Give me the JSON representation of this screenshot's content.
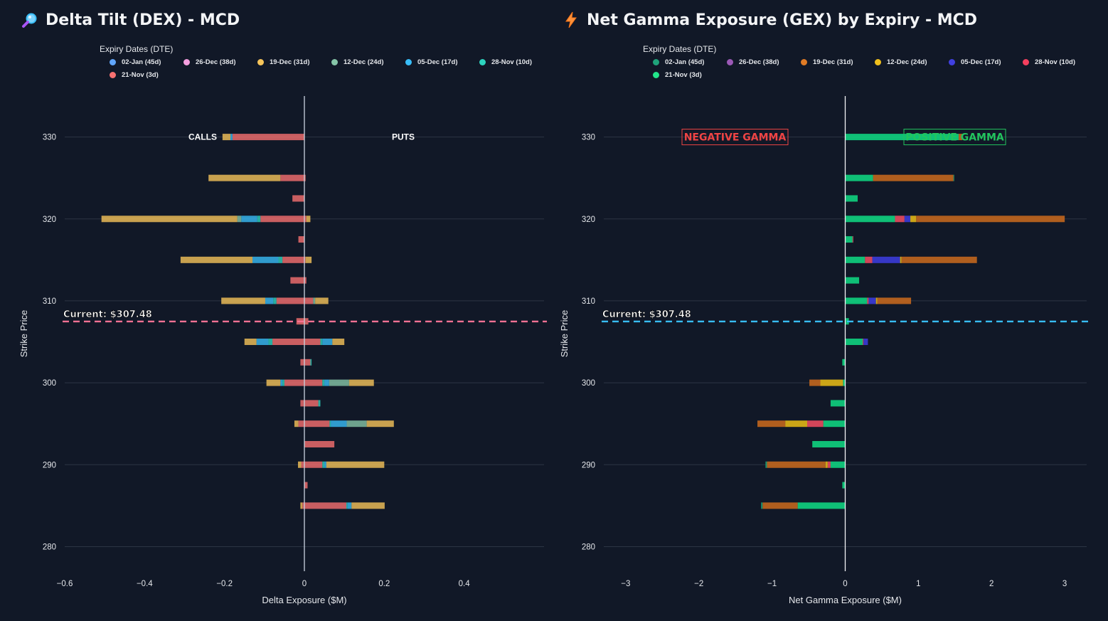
{
  "left_panel": {
    "title": "Delta Tilt (DEX) - MCD",
    "icon": "magnifier-icon",
    "legend_title": "Expiry Dates (DTE)",
    "annotations": {
      "calls": "CALLS",
      "puts": "PUTS",
      "current": "Current: $307.48"
    },
    "current_color": "#f87193"
  },
  "right_panel": {
    "title": "Net Gamma Exposure (GEX) by Expiry - MCD",
    "icon": "lightning-icon",
    "legend_title": "Expiry Dates (DTE)",
    "annotations": {
      "negative": "NEGATIVE GAMMA",
      "positive": "POSITIVE GAMMA",
      "current": "Current: $307.48"
    },
    "current_color": "#38bdf8"
  },
  "chart_data": [
    {
      "type": "bar",
      "orientation": "horizontal",
      "barmode": "stacked",
      "title": "Delta Tilt (DEX) - MCD",
      "xlabel": "Delta Exposure ($M)",
      "ylabel": "Strike Price",
      "xlim": [
        -0.6,
        0.6
      ],
      "ylim": [
        277,
        335
      ],
      "xticks": [
        -0.6,
        -0.4,
        -0.2,
        0,
        0.2,
        0.4
      ],
      "xtick_labels": [
        "−0.6",
        "−0.4",
        "−0.2",
        "0",
        "0.2",
        "0.4"
      ],
      "yticks": [
        280,
        290,
        300,
        310,
        320,
        330
      ],
      "current_price": 307.48,
      "legend_title": "Expiry Dates (DTE)",
      "legend_position": "top",
      "strikes": [
        330,
        325,
        322.5,
        320,
        317.5,
        315,
        312.5,
        310,
        307.5,
        305,
        302.5,
        300,
        297.5,
        295,
        292.5,
        290,
        287.5,
        285
      ],
      "series": [
        {
          "name": "21-Nov (3d)",
          "color": "#f87171",
          "legend_color": "#f87171",
          "neg": [
            -0.18,
            -0.06,
            -0.03,
            -0.11,
            -0.015,
            -0.055,
            -0.035,
            -0.07,
            -0.02,
            -0.08,
            -0.01,
            -0.05,
            -0.01,
            -0.015,
            0,
            -0.008,
            0,
            -0.005
          ],
          "pos": [
            0,
            0.003,
            0,
            0.005,
            0,
            0.003,
            0.005,
            0.022,
            0.01,
            0.04,
            0.015,
            0.045,
            0.035,
            0.063,
            0.075,
            0.045,
            0.008,
            0.105
          ]
        },
        {
          "name": "28-Nov (10d)",
          "color": "#2dd4bf",
          "legend_color": "#2dd4bf",
          "neg": [
            0,
            0,
            0,
            -0.008,
            0,
            -0.01,
            0,
            -0.008,
            0,
            -0.01,
            0,
            -0.005,
            0,
            0,
            0,
            0,
            0,
            0
          ],
          "pos": [
            0,
            0,
            0,
            0,
            0,
            0,
            0,
            0,
            0,
            0.005,
            0.003,
            0.005,
            0.005,
            0.003,
            0,
            0.005,
            0,
            0.003
          ]
        },
        {
          "name": "05-Dec (17d)",
          "color": "#38bdf8",
          "legend_color": "#38bdf8",
          "neg": [
            -0.005,
            0,
            0,
            -0.04,
            0,
            -0.065,
            0,
            -0.02,
            0,
            -0.03,
            0,
            -0.005,
            0,
            0,
            0,
            0,
            0,
            0
          ],
          "pos": [
            0,
            0,
            0,
            0,
            0,
            0,
            0,
            0,
            0,
            0.025,
            0,
            0.012,
            0,
            0.04,
            0,
            0.005,
            0,
            0.01
          ]
        },
        {
          "name": "12-Dec (24d)",
          "color": "#86c5a8",
          "legend_color": "#86c5a8",
          "neg": [
            0,
            0,
            0,
            -0.01,
            0,
            0,
            0,
            0,
            0,
            0,
            0,
            0,
            0,
            0,
            0,
            0,
            0,
            0
          ],
          "pos": [
            0,
            0,
            0,
            0,
            0,
            0,
            0,
            0.005,
            0,
            0,
            0,
            0.05,
            0,
            0.05,
            0,
            0,
            0,
            0
          ]
        },
        {
          "name": "19-Dec (31d)",
          "color": "#f6c45a",
          "legend_color": "#f6c45a",
          "neg": [
            -0.02,
            -0.18,
            0,
            -0.34,
            0,
            -0.18,
            0,
            -0.11,
            0,
            -0.03,
            0,
            -0.035,
            0,
            -0.01,
            0,
            -0.008,
            0,
            -0.005
          ],
          "pos": [
            0,
            0,
            0,
            0.01,
            0,
            0.015,
            0,
            0.033,
            0,
            0.03,
            0,
            0.062,
            0,
            0.068,
            0,
            0.145,
            0,
            0.083
          ]
        },
        {
          "name": "26-Dec (38d)",
          "color": "#f59ede",
          "legend_color": "#f59ede",
          "neg": [
            0,
            0,
            0,
            0,
            0,
            0,
            0,
            0,
            0,
            0,
            0,
            0,
            0,
            0,
            0,
            0,
            0,
            0
          ],
          "pos": [
            0,
            0,
            0,
            0,
            0,
            0,
            0,
            0,
            0,
            0,
            0,
            0,
            0,
            0,
            0,
            0,
            0,
            0
          ]
        },
        {
          "name": "02-Jan (45d)",
          "color": "#60a5fa",
          "legend_color": "#60a5fa",
          "neg": [
            0,
            0,
            0,
            0,
            0,
            0,
            0,
            0,
            0,
            0,
            0,
            0,
            0,
            0,
            0,
            0,
            0,
            0
          ],
          "pos": [
            0,
            0,
            0,
            0,
            0,
            0,
            0,
            0,
            0,
            0,
            0,
            0,
            0,
            0,
            0,
            0,
            0,
            0
          ]
        }
      ],
      "legend_order": [
        "02-Jan (45d)",
        "26-Dec (38d)",
        "19-Dec (31d)",
        "12-Dec (24d)",
        "05-Dec (17d)",
        "28-Nov (10d)",
        "21-Nov (3d)"
      ]
    },
    {
      "type": "bar",
      "orientation": "horizontal",
      "barmode": "stacked",
      "title": "Net Gamma Exposure (GEX) by Expiry - MCD",
      "xlabel": "Net Gamma Exposure ($M)",
      "ylabel": "Strike Price",
      "xlim": [
        -3.3,
        3.3
      ],
      "ylim": [
        277,
        335
      ],
      "xticks": [
        -3,
        -2,
        -1,
        0,
        1,
        2,
        3
      ],
      "xtick_labels": [
        "−3",
        "−2",
        "−1",
        "0",
        "1",
        "2",
        "3"
      ],
      "yticks": [
        280,
        290,
        300,
        310,
        320,
        330
      ],
      "current_price": 307.48,
      "legend_title": "Expiry Dates (DTE)",
      "legend_position": "top",
      "strikes": [
        330,
        325,
        322.5,
        320,
        317.5,
        315,
        312.5,
        310,
        307.5,
        305,
        302.5,
        300,
        297.5,
        295,
        292.5,
        290,
        287.5,
        285
      ],
      "series": [
        {
          "name": "21-Nov (3d)",
          "color": "#10d180",
          "legend_color": "#22e58a",
          "values": [
            1.55,
            0.38,
            0.17,
            0.68,
            0.1,
            0.27,
            0.19,
            0.3,
            0.05,
            0.24,
            -0.04,
            -0.03,
            -0.2,
            -0.3,
            -0.45,
            -0.2,
            -0.04,
            -0.65
          ]
        },
        {
          "name": "28-Nov (10d)",
          "color": "#e84a5f",
          "legend_color": "#f43f5e",
          "values": [
            0,
            0,
            0,
            0.13,
            0.01,
            0.1,
            0,
            0.02,
            0,
            0.01,
            0,
            0,
            0,
            -0.22,
            0,
            -0.04,
            0,
            0
          ]
        },
        {
          "name": "05-Dec (17d)",
          "color": "#3b3bd8",
          "legend_color": "#4040e0",
          "values": [
            0,
            0,
            0,
            0.08,
            0,
            0.38,
            0,
            0.1,
            0,
            0.06,
            0,
            0,
            0,
            0,
            0,
            0,
            0,
            0
          ]
        },
        {
          "name": "12-Dec (24d)",
          "color": "#e0b516",
          "legend_color": "#f0c01c",
          "values": [
            0,
            0,
            0,
            0.08,
            0,
            0.02,
            0,
            0.02,
            0,
            0,
            0,
            -0.31,
            0,
            -0.3,
            0,
            -0.03,
            0,
            0
          ]
        },
        {
          "name": "19-Dec (31d)",
          "color": "#c2661e",
          "legend_color": "#e07b25",
          "values": [
            0.05,
            1.1,
            0,
            2.03,
            0,
            1.03,
            0,
            0.46,
            0,
            0,
            0,
            -0.15,
            0,
            -0.38,
            0,
            -0.8,
            0,
            -0.48
          ]
        },
        {
          "name": "26-Dec (38d)",
          "color": "#9b59b6",
          "legend_color": "#9b59b6",
          "values": [
            0,
            0,
            0,
            0,
            0,
            0,
            0,
            0,
            0,
            0,
            0,
            0,
            0,
            0,
            0,
            0,
            0,
            0
          ]
        },
        {
          "name": "02-Jan (45d)",
          "color": "#1a9e75",
          "legend_color": "#1fa37a",
          "values": [
            0,
            0.01,
            0,
            0,
            0,
            0,
            0,
            0,
            0,
            0,
            0,
            0,
            0,
            0,
            0,
            -0.02,
            0,
            -0.02
          ]
        }
      ],
      "legend_order": [
        "02-Jan (45d)",
        "26-Dec (38d)",
        "19-Dec (31d)",
        "12-Dec (24d)",
        "05-Dec (17d)",
        "28-Nov (10d)",
        "21-Nov (3d)"
      ]
    }
  ]
}
